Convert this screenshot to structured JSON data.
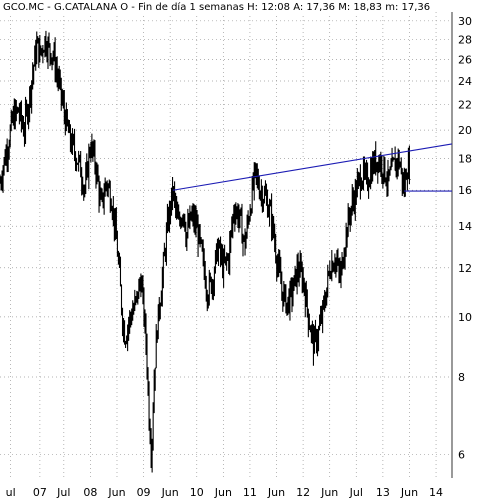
{
  "title": "GCO.MC - G.CATALANA O - Fin de día 1 semanas  H: 12:08  A: 17,36  M: 18,83  m: 17,36",
  "chart_data": {
    "type": "line",
    "style": "candlestick-weekly",
    "y_scale": "log",
    "ylim": [
      5.5,
      31
    ],
    "xlim": [
      2005.8,
      2014.3
    ],
    "yticks": [
      6,
      8,
      10,
      12,
      14,
      16,
      18,
      20,
      22,
      24,
      26,
      28,
      30
    ],
    "xticks": [
      {
        "x": 2006.0,
        "label": "ul"
      },
      {
        "x": 2006.55,
        "label": "07"
      },
      {
        "x": 2007.0,
        "label": "Jul"
      },
      {
        "x": 2007.5,
        "label": "08"
      },
      {
        "x": 2008.0,
        "label": "Jun"
      },
      {
        "x": 2008.5,
        "label": "09"
      },
      {
        "x": 2009.0,
        "label": "Jun"
      },
      {
        "x": 2009.5,
        "label": "10"
      },
      {
        "x": 2010.0,
        "label": "Jun"
      },
      {
        "x": 2010.5,
        "label": "11"
      },
      {
        "x": 2011.0,
        "label": "Jun"
      },
      {
        "x": 2011.5,
        "label": "12"
      },
      {
        "x": 2012.0,
        "label": "Jun"
      },
      {
        "x": 2012.5,
        "label": "Jul"
      },
      {
        "x": 2013.0,
        "label": "13"
      },
      {
        "x": 2013.5,
        "label": "Jun"
      },
      {
        "x": 2014.0,
        "label": "14"
      }
    ],
    "grid": true,
    "colors": {
      "price": "#000000",
      "trendline": "#1c1cb4",
      "grid": "#9a9a9a"
    },
    "series": [
      {
        "x": [
          2005.8,
          2005.95,
          2006.05,
          2006.15,
          2006.25,
          2006.35,
          2006.45,
          2006.5,
          2006.55,
          2006.65,
          2006.72,
          2006.8,
          2006.9,
          2007.0,
          2007.1,
          2007.2,
          2007.3,
          2007.4,
          2007.5,
          2007.6,
          2007.7,
          2007.8,
          2007.9,
          2008.0,
          2008.1,
          2008.15,
          2008.25,
          2008.35,
          2008.45,
          2008.55,
          2008.6,
          2008.65,
          2008.7,
          2008.75,
          2008.8,
          2008.85,
          2008.95,
          2009.05,
          2009.1,
          2009.15,
          2009.25,
          2009.3,
          2009.4,
          2009.5,
          2009.6,
          2009.7,
          2009.8,
          2009.9,
          2010.0,
          2010.1,
          2010.2,
          2010.3,
          2010.4,
          2010.5,
          2010.6,
          2010.7,
          2010.8,
          2010.9,
          2011.0,
          2011.1,
          2011.2,
          2011.3,
          2011.4,
          2011.5,
          2011.6,
          2011.7,
          2011.8,
          2011.9,
          2012.0,
          2012.1,
          2012.2,
          2012.3,
          2012.4,
          2012.5,
          2012.6,
          2012.7,
          2012.8,
          2012.9,
          2013.0,
          2013.1,
          2013.2,
          2013.3,
          2013.35,
          2013.4,
          2013.45,
          2013.5
        ],
        "y": [
          16.5,
          19.0,
          21.0,
          21.5,
          20.0,
          22.5,
          26.0,
          27.5,
          26.5,
          28.0,
          27.0,
          26.5,
          24.0,
          21.5,
          19.5,
          18.5,
          17.5,
          16.0,
          19.0,
          17.5,
          15.0,
          16.5,
          15.5,
          13.0,
          10.0,
          9.3,
          10.0,
          10.5,
          11.5,
          9.0,
          7.0,
          6.0,
          8.0,
          9.5,
          10.5,
          11.5,
          14.0,
          16.0,
          15.0,
          14.0,
          15.0,
          13.5,
          14.5,
          14.0,
          12.5,
          11.0,
          11.5,
          13.0,
          12.0,
          12.5,
          15.0,
          14.5,
          13.0,
          15.0,
          17.0,
          16.0,
          15.5,
          14.5,
          12.5,
          11.0,
          10.5,
          11.0,
          12.0,
          11.5,
          10.0,
          9.0,
          9.5,
          10.5,
          12.0,
          12.5,
          11.5,
          13.5,
          15.0,
          16.0,
          17.0,
          16.5,
          17.5,
          18.0,
          17.5,
          16.5,
          17.5,
          18.0,
          17.0,
          16.0,
          17.5,
          17.4
        ]
      }
    ],
    "trendlines": [
      {
        "x": [
          2009.05,
          2014.3
        ],
        "y": [
          16.0,
          19.0
        ]
      },
      {
        "x": [
          2013.4,
          2014.3
        ],
        "y": [
          15.95,
          15.95
        ]
      }
    ]
  }
}
